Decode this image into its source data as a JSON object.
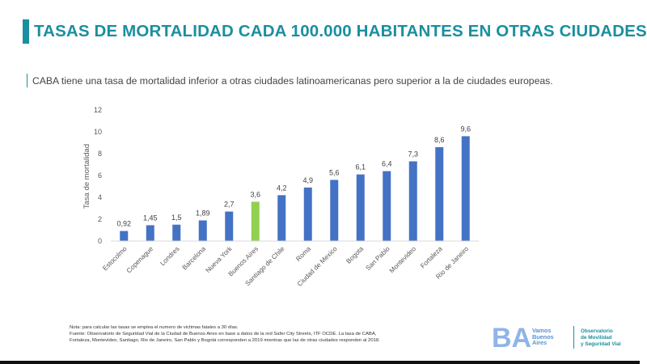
{
  "title": "TASAS DE MORTALIDAD CADA 100.000 HABITANTES EN OTRAS CIUDADES",
  "subtitle": "CABA tiene una tasa de mortalidad inferior a otras ciudades latinoamericanas pero superior a la de ciudades europeas.",
  "colors": {
    "accent": "#1a8fa0",
    "bar": "#4472c4",
    "highlight": "#92d050"
  },
  "chart_data": {
    "type": "bar",
    "title": "",
    "xlabel": "",
    "ylabel": "Tasa de mortalidad",
    "ylim": [
      0,
      12
    ],
    "yticks": [
      0,
      2,
      4,
      6,
      8,
      10,
      12
    ],
    "grid": false,
    "categories": [
      "Estocolmo",
      "Copenague",
      "Londres",
      "Barcelona",
      "Nueva York",
      "Buenos Aires",
      "Santiago de Chile",
      "Roma",
      "Ciudad de Mexico",
      "Bogota",
      "San Pablo",
      "Montevideo",
      "Fortaleza",
      "Rio de Janeiro"
    ],
    "values": [
      0.92,
      1.45,
      1.5,
      1.89,
      2.7,
      3.6,
      4.2,
      4.9,
      5.6,
      6.1,
      6.4,
      7.3,
      8.6,
      9.6
    ],
    "value_labels": [
      "0,92",
      "1,45",
      "1,5",
      "1,89",
      "2,7",
      "3,6",
      "4,2",
      "4,9",
      "5,6",
      "6,1",
      "6,4",
      "7,3",
      "8,6",
      "9,6"
    ],
    "highlight_category": "Buenos Aires"
  },
  "footnote": {
    "line1": "Nota: para calcular las tasas se emplea el numero de victimas fatales a 30 días.",
    "line2": "Fuente: Observatorio de Seguridad Vial de la Ciudad de Buenos Aires en base a datos de la red Safer City Streets, ITF OCDE. La tasa de CABA,",
    "line3": "Fortaleza, Montevideo, Santiago, Rio de Janeiro, San Pablo y Bogotá corresponden a 2019 mientras que las de otras ciudades responden al 2018."
  },
  "logo": {
    "brand_line1": "Vamos",
    "brand_line2": "Buenos",
    "brand_line3": "Aires",
    "brand_mark_text": "BA",
    "observatory_line1": "Observatorio",
    "observatory_line2": "de Movilidad",
    "observatory_line3": "y Seguridad Vial"
  }
}
